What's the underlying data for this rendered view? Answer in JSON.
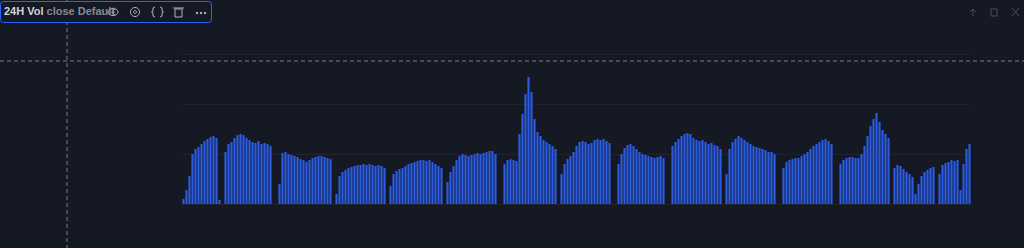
{
  "chart_data": {
    "type": "bar",
    "title": "24H Vol",
    "subtitle": "close Default",
    "categories": [
      null,
      null,
      null,
      null,
      null,
      null,
      null,
      null,
      null,
      null,
      null,
      null,
      null,
      null,
      null,
      null,
      null,
      null,
      null,
      null,
      null,
      null,
      null,
      null,
      null,
      null,
      null,
      null,
      null,
      null,
      null,
      null,
      null,
      null,
      null,
      null,
      null,
      null,
      null,
      null,
      null,
      null,
      null,
      null,
      null,
      null,
      null,
      null,
      null,
      null,
      null,
      null,
      null,
      null,
      null,
      null,
      null,
      null,
      null,
      null,
      null,
      null,
      null,
      null,
      null,
      null,
      null,
      null,
      null,
      null,
      null,
      null,
      null,
      null,
      null,
      null,
      null,
      null,
      null,
      null,
      null,
      null,
      null,
      null,
      null,
      null,
      null,
      null,
      null,
      null,
      null,
      null,
      null,
      null,
      null,
      null,
      null,
      null,
      null,
      null,
      null,
      null,
      null,
      null,
      null,
      null,
      null,
      null,
      null,
      null,
      null,
      null,
      null,
      null,
      null,
      null,
      null,
      null,
      null,
      null,
      null,
      null,
      null,
      null,
      null,
      null,
      null,
      null,
      null,
      null,
      null,
      null,
      null,
      null,
      null,
      null,
      null,
      null,
      null,
      null,
      null,
      null,
      null,
      null,
      null,
      null,
      null,
      null,
      null,
      null,
      null,
      null,
      null,
      null,
      null,
      null,
      null,
      null,
      null,
      null,
      null,
      null,
      null,
      null,
      null,
      null,
      null,
      null,
      null,
      null,
      null,
      null,
      null,
      null,
      null,
      null,
      null,
      null,
      null,
      null,
      null,
      null,
      null,
      null,
      null,
      null,
      null,
      null,
      null,
      null,
      null,
      null,
      null,
      null,
      null,
      null,
      null,
      null,
      null,
      null,
      null,
      null,
      null,
      null,
      null,
      null,
      null,
      null,
      null,
      null,
      null,
      null,
      null,
      null,
      null,
      null,
      null,
      null,
      null,
      null,
      null,
      null,
      null,
      null,
      null,
      null,
      null,
      null,
      null,
      null,
      null,
      null,
      null,
      null,
      null,
      null,
      null,
      null,
      null,
      null,
      null,
      null,
      null,
      null,
      null,
      null,
      null,
      null,
      null,
      null,
      null,
      null,
      null,
      null,
      null,
      null,
      null,
      null,
      null,
      null,
      null,
      null,
      null
    ],
    "values": [
      5,
      14,
      28,
      50,
      55,
      57,
      60,
      63,
      65,
      67,
      68,
      66,
      4,
      null,
      52,
      60,
      62,
      66,
      69,
      70,
      69,
      66,
      64,
      62,
      61,
      63,
      60,
      61,
      60,
      58,
      null,
      null,
      20,
      51,
      52,
      50,
      49,
      48,
      47,
      45,
      44,
      42,
      44,
      46,
      47,
      48,
      48,
      47,
      46,
      45,
      null,
      10,
      28,
      32,
      34,
      36,
      37,
      38,
      39,
      39,
      40,
      39,
      40,
      39,
      38,
      39,
      38,
      36,
      null,
      18,
      30,
      33,
      35,
      36,
      38,
      40,
      41,
      42,
      43,
      44,
      44,
      43,
      44,
      42,
      40,
      38,
      36,
      null,
      22,
      32,
      38,
      44,
      48,
      50,
      49,
      48,
      49,
      50,
      51,
      50,
      51,
      52,
      53,
      53,
      50,
      null,
      null,
      40,
      44,
      45,
      44,
      43,
      70,
      90,
      110,
      127,
      112,
      85,
      72,
      68,
      64,
      62,
      60,
      58,
      55,
      null,
      30,
      40,
      45,
      48,
      52,
      58,
      62,
      63,
      62,
      60,
      61,
      64,
      65,
      64,
      65,
      63,
      61,
      null,
      null,
      40,
      50,
      56,
      59,
      60,
      58,
      55,
      52,
      50,
      49,
      48,
      47,
      46,
      47,
      48,
      46,
      null,
      null,
      58,
      62,
      65,
      68,
      70,
      71,
      70,
      66,
      64,
      63,
      64,
      62,
      60,
      61,
      59,
      58,
      55,
      null,
      30,
      55,
      62,
      65,
      68,
      66,
      64,
      62,
      60,
      58,
      57,
      56,
      55,
      54,
      52,
      52,
      50,
      null,
      null,
      36,
      42,
      44,
      45,
      46,
      46,
      48,
      50,
      52,
      55,
      58,
      60,
      62,
      64,
      65,
      63,
      60,
      null,
      null,
      40,
      44,
      46,
      47,
      47,
      46,
      46,
      50,
      58,
      68,
      78,
      85,
      91,
      82,
      74,
      70,
      66,
      null,
      36,
      39,
      38,
      35,
      32,
      30,
      27,
      10,
      20,
      28,
      32,
      34,
      36,
      37,
      null,
      30,
      39,
      41,
      42,
      44,
      43,
      44,
      14,
      40,
      55,
      60
    ],
    "color": "#2b5ce6",
    "ylim": [
      0,
      150
    ],
    "yticks": [
      0,
      50,
      100,
      150
    ],
    "grid": true,
    "tick_labels": false
  }
}
